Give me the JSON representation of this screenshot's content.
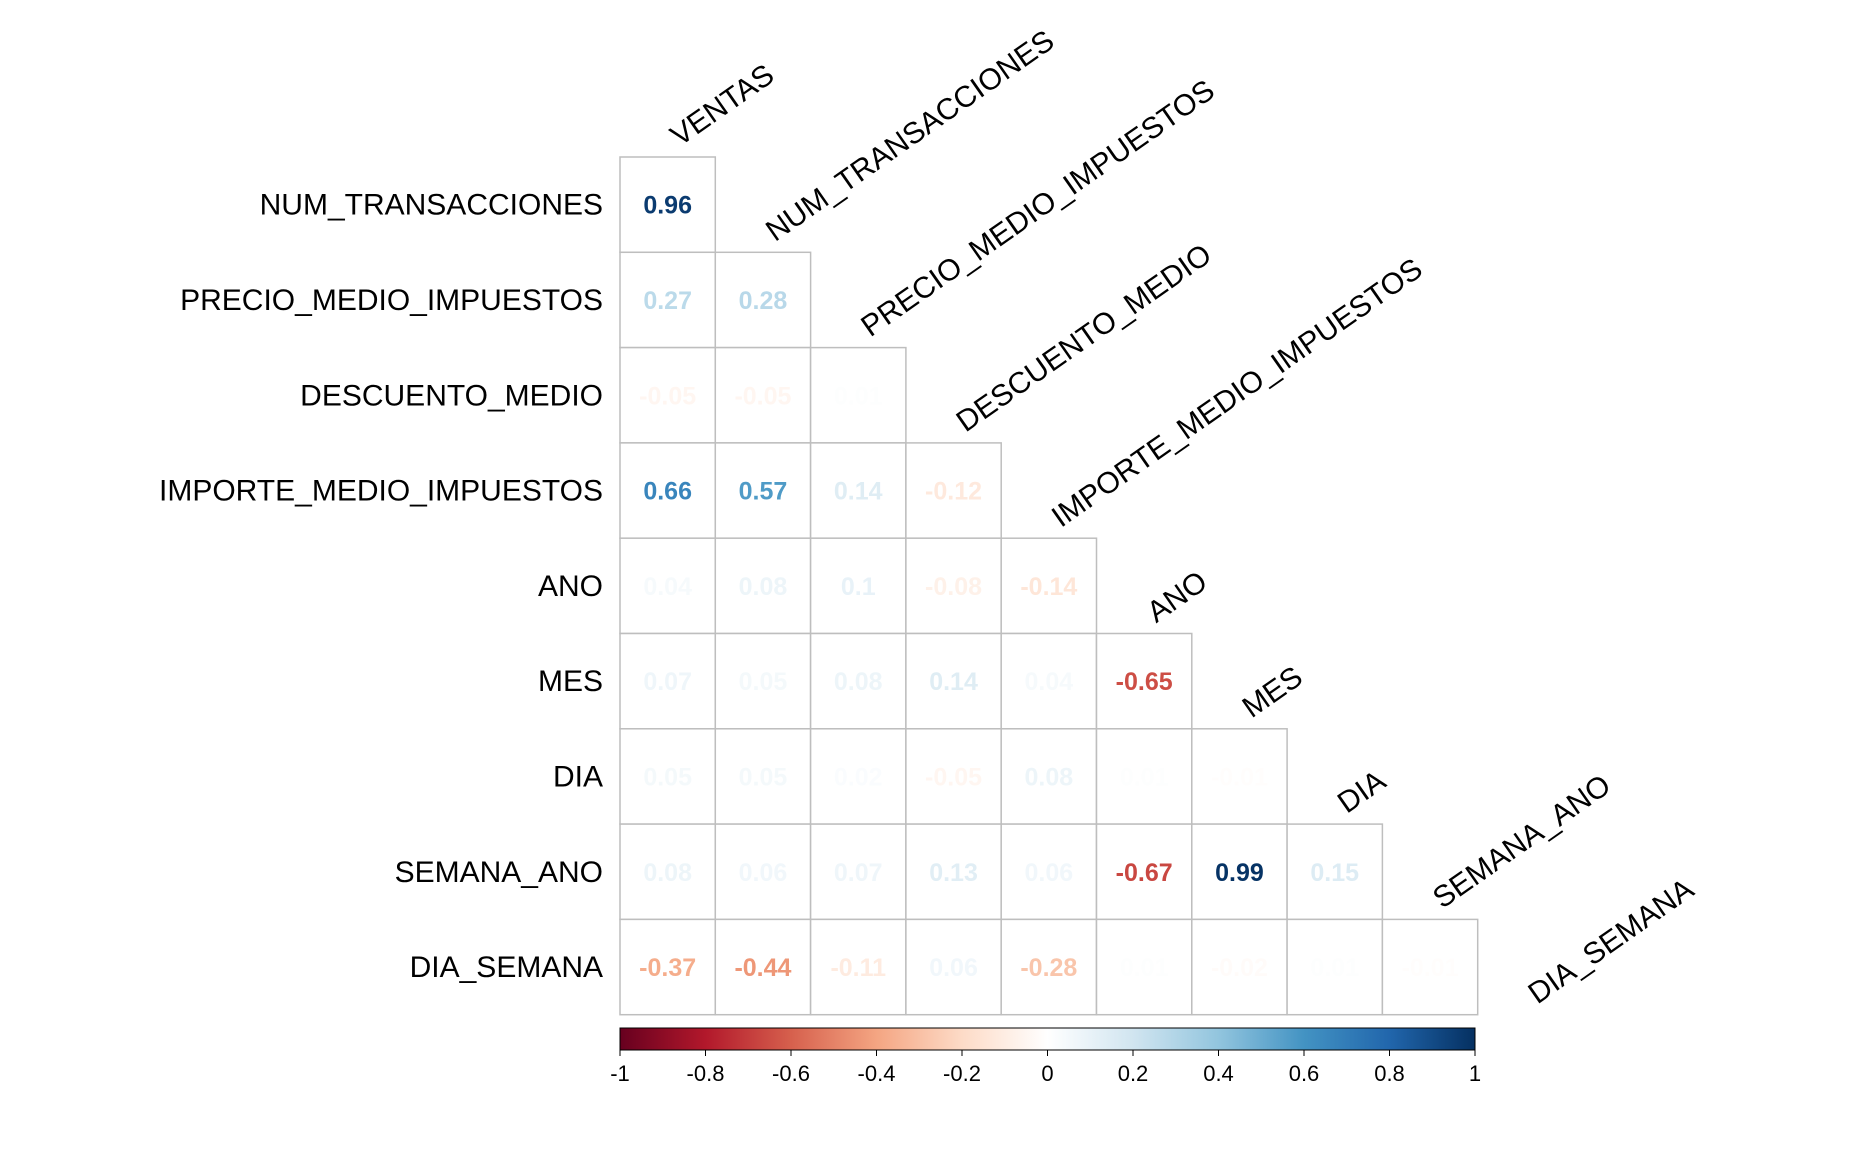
{
  "chart_data": {
    "type": "heatmap",
    "variables": [
      "VENTAS",
      "NUM_TRANSACCIONES",
      "PRECIO_MEDIO_IMPUESTOS",
      "DESCUENTO_MEDIO",
      "IMPORTE_MEDIO_IMPUESTOS",
      "ANO",
      "MES",
      "DIA",
      "SEMANA_ANO",
      "DIA_SEMANA"
    ],
    "rows": [
      "NUM_TRANSACCIONES",
      "PRECIO_MEDIO_IMPUESTOS",
      "DESCUENTO_MEDIO",
      "IMPORTE_MEDIO_IMPUESTOS",
      "ANO",
      "MES",
      "DIA",
      "SEMANA_ANO",
      "DIA_SEMANA"
    ],
    "columns": [
      "VENTAS",
      "NUM_TRANSACCIONES",
      "PRECIO_MEDIO_IMPUESTOS",
      "DESCUENTO_MEDIO",
      "IMPORTE_MEDIO_IMPUESTOS",
      "ANO",
      "MES",
      "DIA",
      "SEMANA_ANO"
    ],
    "values": [
      [
        "0.96"
      ],
      [
        "0.27",
        "0.28"
      ],
      [
        "-0.05",
        "-0.05",
        "0.01"
      ],
      [
        "0.66",
        "0.57",
        "0.14",
        "-0.12"
      ],
      [
        "0.04",
        "0.08",
        "0.1",
        "-0.08",
        "-0.14"
      ],
      [
        "0.07",
        "0.05",
        "0.08",
        "0.14",
        "0.04",
        "-0.65"
      ],
      [
        "0.05",
        "0.05",
        "0.02",
        "-0.05",
        "0.08",
        "0.01",
        "-0.01"
      ],
      [
        "0.08",
        "0.06",
        "0.07",
        "0.13",
        "0.06",
        "-0.67",
        "0.99",
        "0.15"
      ],
      [
        "-0.37",
        "-0.44",
        "-0.11",
        "0.06",
        "-0.28",
        "0.01",
        "-0.02",
        "0.01",
        "-0.01"
      ]
    ],
    "colorbar": {
      "range": [
        -1,
        1
      ],
      "ticks": [
        "-1",
        "-0.8",
        "-0.6",
        "-0.4",
        "-0.2",
        "0",
        "0.2",
        "0.4",
        "0.6",
        "0.8",
        "1"
      ],
      "colors": [
        "#67001f",
        "#b2182b",
        "#d6604d",
        "#f4a582",
        "#fddbc7",
        "#ffffff",
        "#d1e5f0",
        "#92c5de",
        "#4393c3",
        "#2166ac",
        "#053061"
      ]
    },
    "grid_color": "#bebebe"
  }
}
